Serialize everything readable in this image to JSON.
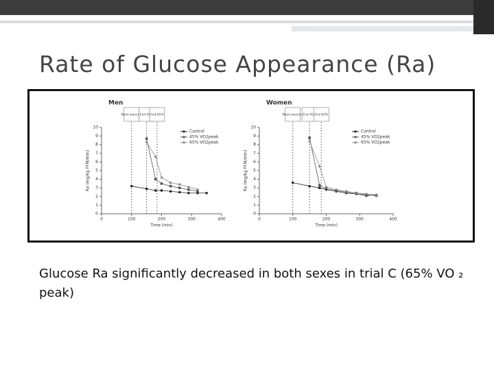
{
  "slide": {
    "title": "Rate of Glucose Appearance (Ra)",
    "caption": "Glucose Ra significantly decreased in both sexes in trial C  (65% VO ₂ peak)"
  },
  "figure": {
    "panels": [
      {
        "title": "Men",
        "xlabel": "Time (min)",
        "ylabel": "Ra (mg/kg FFM/min)",
        "xlim": [
          0,
          400
        ],
        "xticks": [
          0,
          100,
          200,
          300,
          400
        ],
        "ylim": [
          0,
          10
        ],
        "yticks": [
          0,
          1,
          2,
          3,
          4,
          5,
          6,
          7,
          8,
          9,
          10
        ],
        "markers": [
          {
            "label": "Start exercise",
            "x": 100
          },
          {
            "label": "End 45%",
            "x": 150
          },
          {
            "label": "End 65%",
            "x": 185
          }
        ],
        "series": [
          {
            "name": "Control",
            "color": "#222222",
            "x": [
              100,
              150,
              180,
              200,
              230,
              260,
              290,
              320,
              350
            ],
            "values": [
              3.2,
              2.9,
              2.7,
              2.7,
              2.6,
              2.5,
              2.4,
              2.4,
              2.4
            ]
          },
          {
            "name": "45% VO2peak",
            "color": "#555555",
            "x": [
              150,
              180,
              200,
              230,
              260,
              290,
              320
            ],
            "values": [
              8.7,
              4.0,
              3.5,
              3.2,
              3.0,
              2.8,
              2.6
            ]
          },
          {
            "name": "65% VO2peak",
            "color": "#888888",
            "x": [
              150,
              180,
              200,
              230,
              260,
              290,
              320
            ],
            "values": [
              8.3,
              6.6,
              4.2,
              3.6,
              3.4,
              3.1,
              2.8
            ]
          }
        ]
      },
      {
        "title": "Women",
        "xlabel": "Time (min)",
        "ylabel": "Ra (mg/kg FFM/min)",
        "xlim": [
          0,
          400
        ],
        "xticks": [
          0,
          100,
          200,
          300,
          400
        ],
        "ylim": [
          0,
          10
        ],
        "yticks": [
          0,
          1,
          2,
          3,
          4,
          5,
          6,
          7,
          8,
          9,
          10
        ],
        "markers": [
          {
            "label": "Start exercise",
            "x": 100
          },
          {
            "label": "End 45%",
            "x": 150
          },
          {
            "label": "End 65%",
            "x": 185
          }
        ],
        "series": [
          {
            "name": "Control",
            "color": "#222222",
            "x": [
              100,
              150,
              180,
              200,
              230,
              260,
              290,
              320,
              350
            ],
            "values": [
              3.6,
              3.2,
              3.0,
              2.8,
              2.6,
              2.4,
              2.3,
              2.1,
              2.2
            ]
          },
          {
            "name": "45% VO2peak",
            "color": "#555555",
            "x": [
              150,
              180,
              200,
              230,
              260,
              290,
              320,
              350
            ],
            "values": [
              8.8,
              3.3,
              2.9,
              2.7,
              2.5,
              2.4,
              2.2,
              2.1
            ]
          },
          {
            "name": "65% VO2peak",
            "color": "#888888",
            "x": [
              150,
              180,
              200,
              230,
              260,
              290,
              320,
              350
            ],
            "values": [
              8.4,
              5.5,
              3.1,
              2.8,
              2.6,
              2.4,
              2.3,
              2.2
            ]
          }
        ]
      }
    ]
  }
}
